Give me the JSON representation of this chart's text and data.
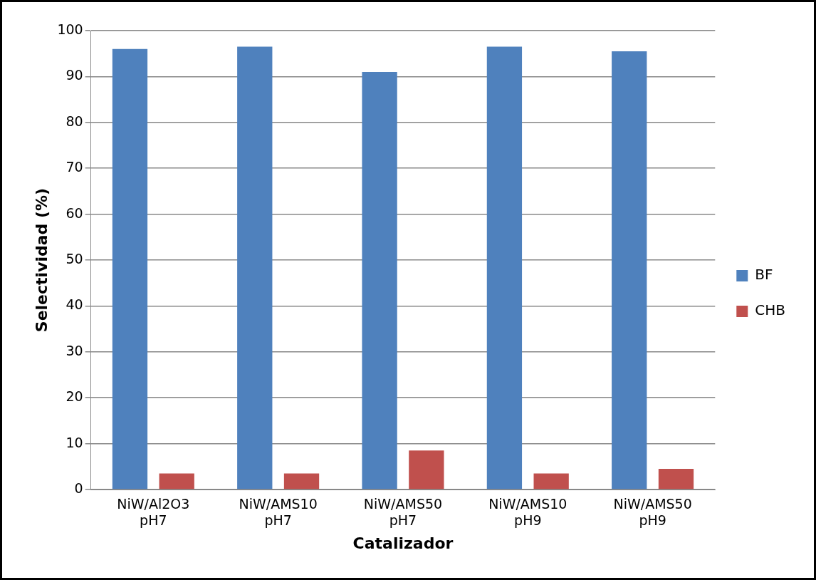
{
  "chart_data": {
    "type": "bar",
    "xlabel": "Catalizador",
    "ylabel": "Selectividad (%)",
    "categories": [
      "NiW/Al2O3 pH7",
      "NiW/AMS10 pH7",
      "NiW/AMS50 pH7",
      "NiW/AMS10 pH9",
      "NiW/AMS50 pH9"
    ],
    "series": [
      {
        "name": "BF",
        "color": "#4f81bd",
        "values": [
          96,
          96.5,
          91,
          96.5,
          95.5
        ]
      },
      {
        "name": "CHB",
        "color": "#c0504d",
        "values": [
          3.5,
          3.5,
          8.5,
          3.5,
          4.5
        ]
      }
    ],
    "ylim": [
      0,
      100
    ],
    "yticks": [
      0,
      10,
      20,
      30,
      40,
      50,
      60,
      70,
      80,
      90,
      100
    ],
    "grid": "y",
    "legend": "right"
  }
}
